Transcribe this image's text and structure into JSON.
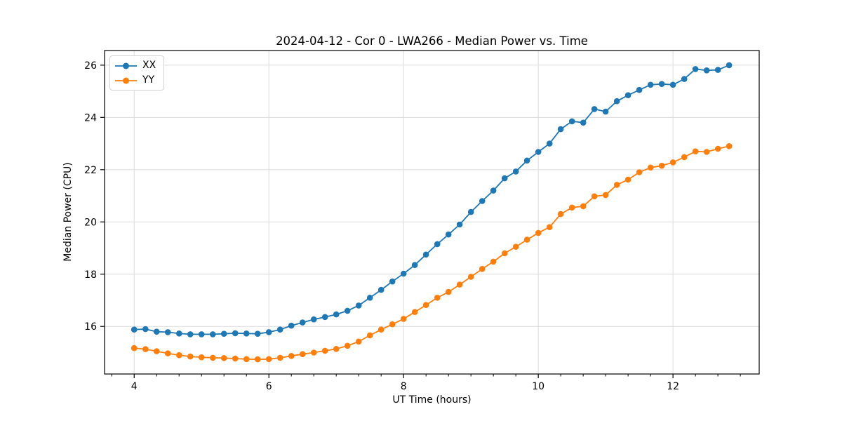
{
  "chart_data": {
    "type": "line",
    "title": "2024-04-12 - Cor 0 - LWA266 - Median Power vs. Time",
    "xlabel": "UT Time (hours)",
    "ylabel": "Median Power (CPU)",
    "xlim": [
      3.56,
      13.28
    ],
    "ylim": [
      14.18,
      26.56
    ],
    "x_major_ticks": [
      4,
      6,
      8,
      10,
      12
    ],
    "x_minor_step": 0.3333333,
    "y_major_ticks": [
      16,
      18,
      20,
      22,
      24,
      26
    ],
    "grid": true,
    "grid_color": "#dcdcdc",
    "spine_color": "#000000",
    "legend_position": "upper-left",
    "marker": "circle",
    "x": [
      4.0,
      4.167,
      4.333,
      4.5,
      4.667,
      4.833,
      5.0,
      5.167,
      5.333,
      5.5,
      5.667,
      5.833,
      6.0,
      6.167,
      6.333,
      6.5,
      6.667,
      6.833,
      7.0,
      7.167,
      7.333,
      7.5,
      7.667,
      7.833,
      8.0,
      8.167,
      8.333,
      8.5,
      8.667,
      8.833,
      9.0,
      9.167,
      9.333,
      9.5,
      9.667,
      9.833,
      10.0,
      10.167,
      10.333,
      10.5,
      10.667,
      10.833,
      11.0,
      11.167,
      11.333,
      11.5,
      11.667,
      11.833,
      12.0,
      12.167,
      12.333,
      12.5,
      12.667,
      12.833
    ],
    "series": [
      {
        "name": "XX",
        "color": "#1f77b4",
        "values": [
          15.88,
          15.9,
          15.8,
          15.78,
          15.73,
          15.7,
          15.7,
          15.7,
          15.72,
          15.74,
          15.73,
          15.72,
          15.78,
          15.88,
          16.03,
          16.15,
          16.27,
          16.36,
          16.46,
          16.6,
          16.8,
          17.1,
          17.4,
          17.72,
          18.02,
          18.35,
          18.75,
          19.15,
          19.52,
          19.9,
          20.38,
          20.8,
          21.2,
          21.67,
          21.93,
          22.35,
          22.68,
          23.0,
          23.55,
          23.85,
          23.8,
          24.32,
          24.22,
          24.62,
          24.85,
          25.05,
          25.25,
          25.28,
          25.25,
          25.47,
          25.85,
          25.8,
          25.82,
          26.0
        ]
      },
      {
        "name": "YY",
        "color": "#ff7f0e",
        "values": [
          15.17,
          15.13,
          15.05,
          14.97,
          14.9,
          14.85,
          14.82,
          14.8,
          14.79,
          14.77,
          14.75,
          14.74,
          14.75,
          14.8,
          14.87,
          14.94,
          15.0,
          15.07,
          15.14,
          15.26,
          15.42,
          15.66,
          15.88,
          16.08,
          16.29,
          16.55,
          16.82,
          17.1,
          17.32,
          17.6,
          17.9,
          18.2,
          18.48,
          18.8,
          19.05,
          19.32,
          19.58,
          19.8,
          20.3,
          20.55,
          20.6,
          20.98,
          21.03,
          21.42,
          21.62,
          21.9,
          22.08,
          22.15,
          22.28,
          22.48,
          22.7,
          22.68,
          22.8,
          22.9
        ]
      }
    ]
  }
}
